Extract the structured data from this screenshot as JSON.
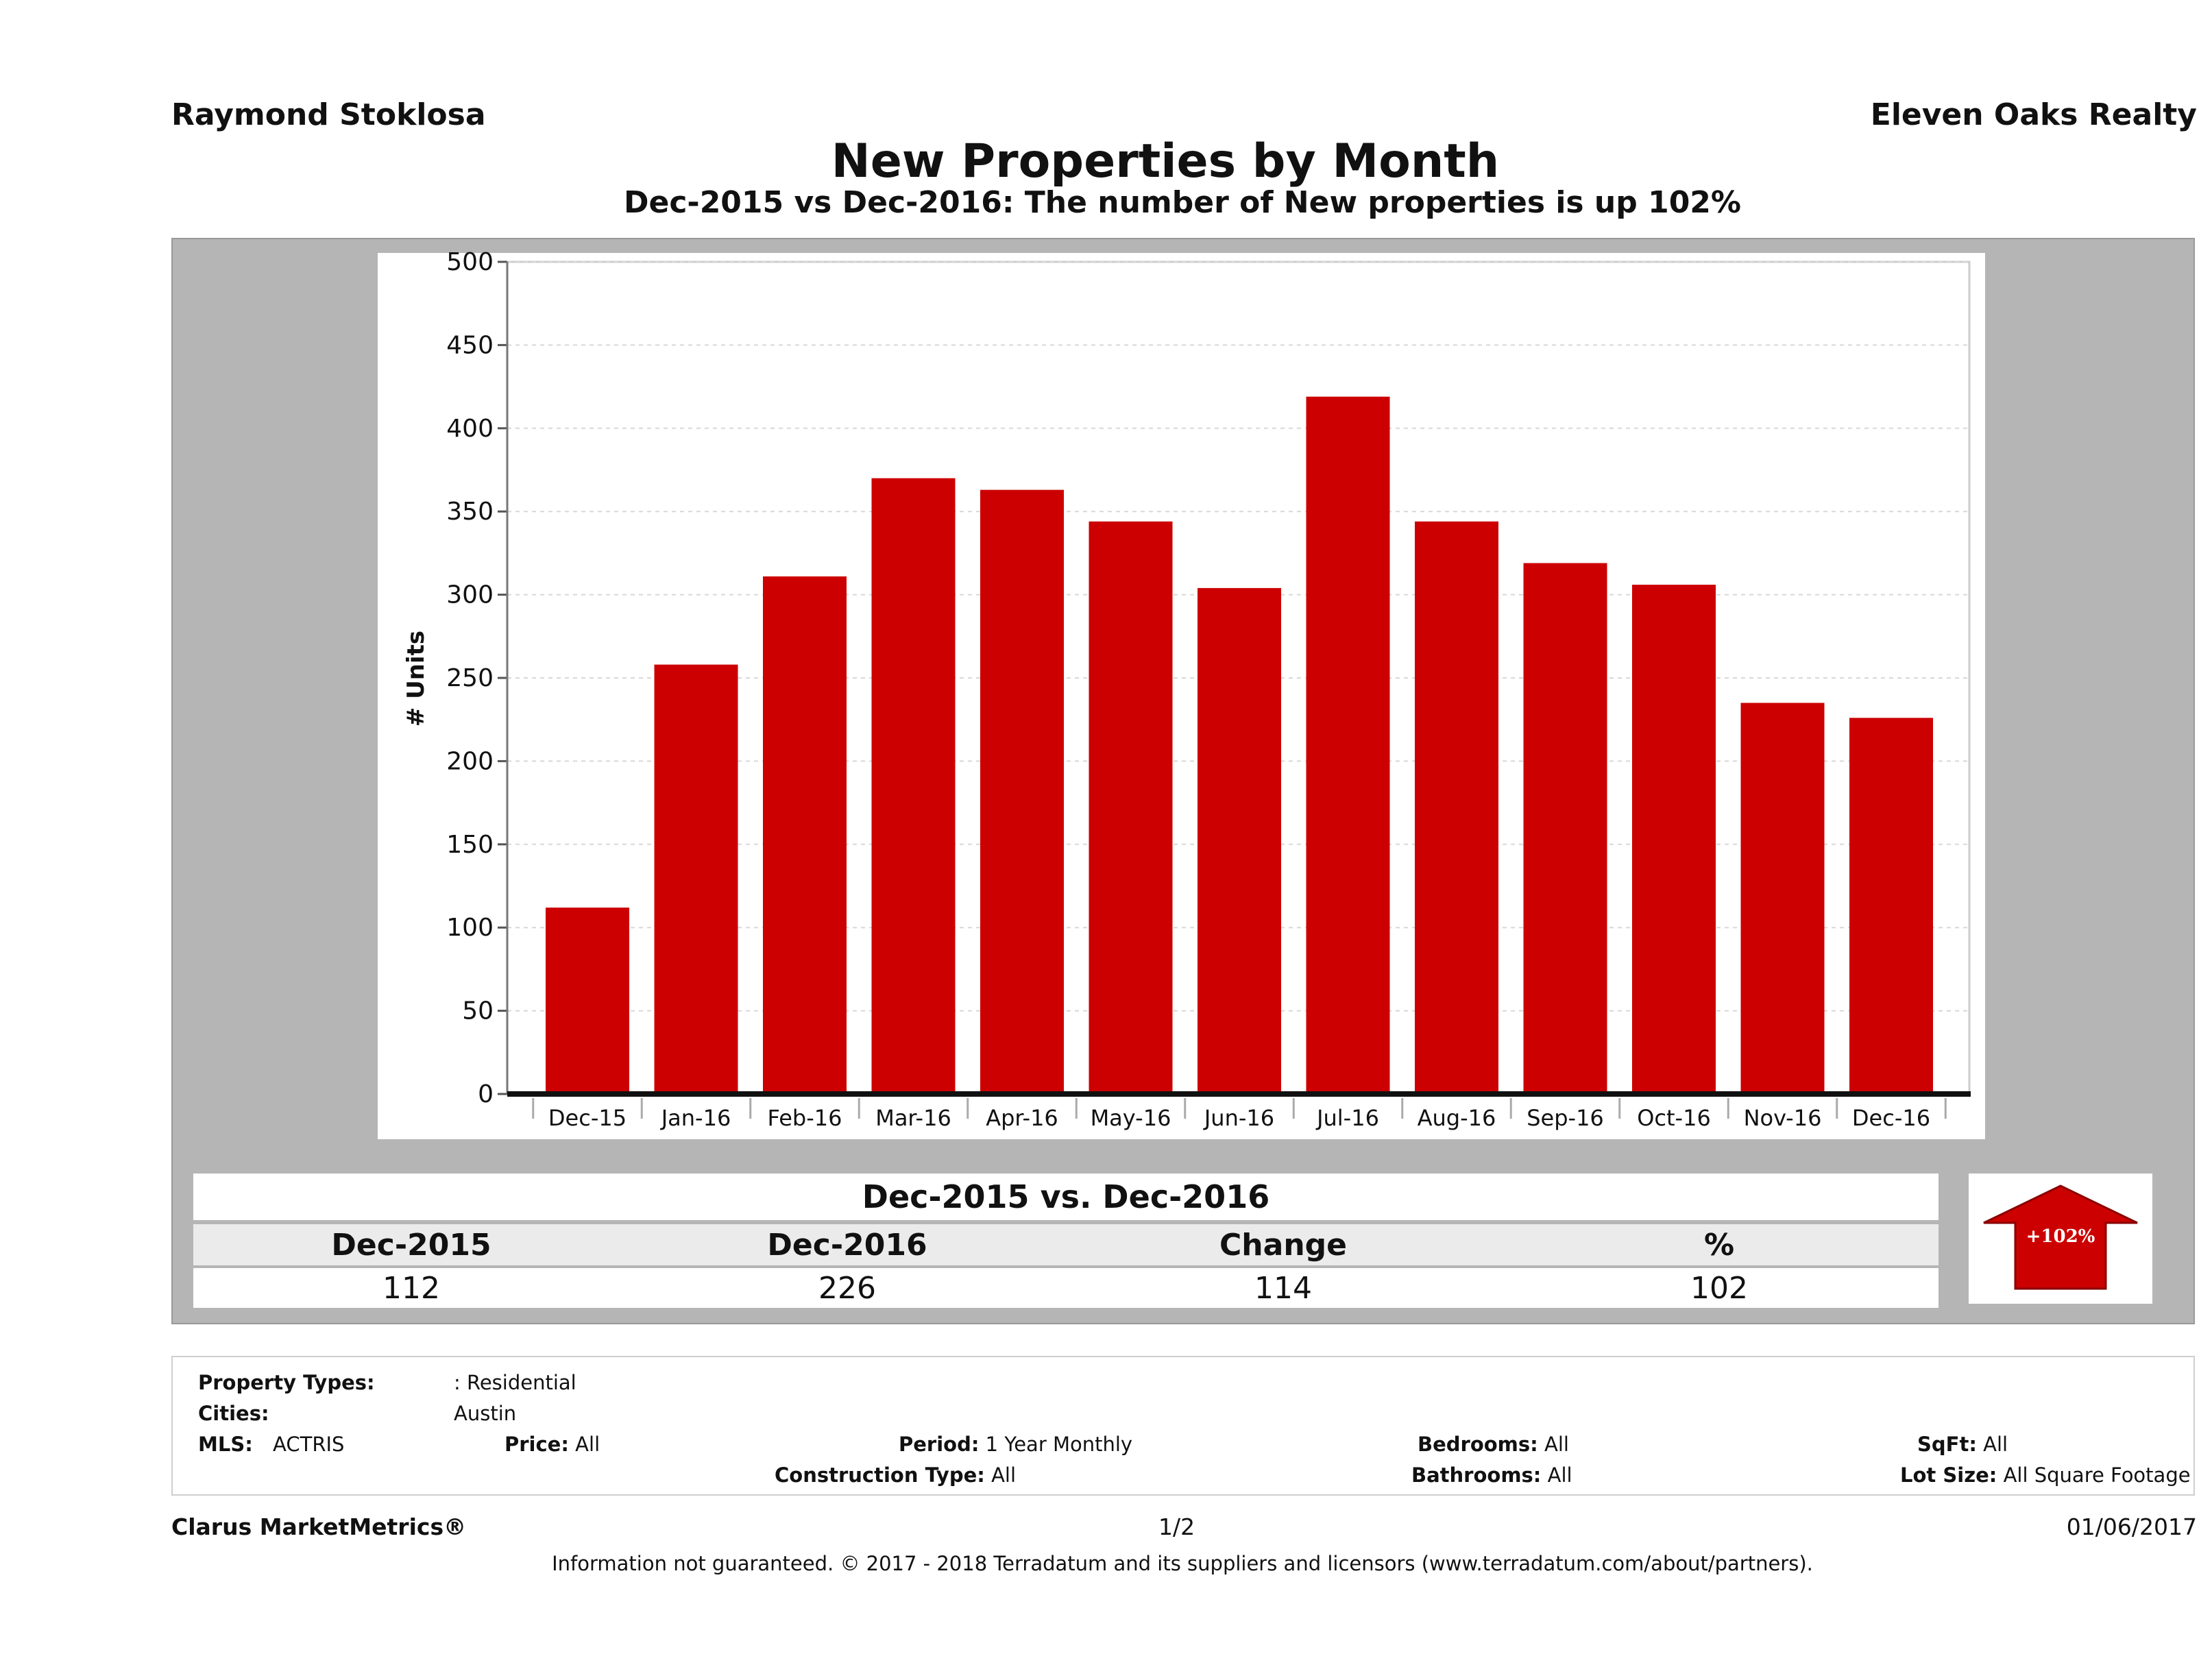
{
  "header": {
    "agent": "Raymond Stoklosa",
    "company": "Eleven Oaks Realty"
  },
  "chart_data": {
    "type": "bar",
    "title": "New Properties by Month",
    "subtitle": "Dec-2015 vs Dec-2016: The number of New   properties is up 102%",
    "ylabel": "# Units",
    "xlabel": "",
    "ylim": [
      0,
      500
    ],
    "yticks": [
      0,
      50,
      100,
      150,
      200,
      250,
      300,
      350,
      400,
      450,
      500
    ],
    "grid": true,
    "categories": [
      "Dec-15",
      "Jan-16",
      "Feb-16",
      "Mar-16",
      "Apr-16",
      "May-16",
      "Jun-16",
      "Jul-16",
      "Aug-16",
      "Sep-16",
      "Oct-16",
      "Nov-16",
      "Dec-16"
    ],
    "values": [
      112,
      258,
      311,
      370,
      363,
      344,
      304,
      419,
      344,
      319,
      306,
      235,
      226
    ],
    "bar_color": "#cc0000"
  },
  "comparison": {
    "title": "Dec-2015 vs. Dec-2016",
    "headers": [
      "Dec-2015",
      "Dec-2016",
      "Change",
      "%"
    ],
    "values": [
      "112",
      "226",
      "114",
      "102"
    ],
    "arrow_label": "+102%",
    "arrow_color": "#cc0000"
  },
  "criteria": {
    "property_types_label": "Property Types:",
    "property_types_value": ": Residential",
    "cities_label": "Cities:",
    "cities_value": "Austin",
    "mls_label": "MLS:",
    "mls_value": "ACTRIS",
    "price_label": "Price:",
    "price_value": "All",
    "period_label": "Period:",
    "period_value": "1 Year Monthly",
    "construction_label": "Construction Type:",
    "construction_value": "All",
    "bedrooms_label": "Bedrooms:",
    "bedrooms_value": "All",
    "bathrooms_label": "Bathrooms:",
    "bathrooms_value": "All",
    "sqft_label": "SqFt:",
    "sqft_value": "All",
    "lotsize_label": "Lot Size:",
    "lotsize_value": "All Square Footage"
  },
  "footer": {
    "brand": "Clarus MarketMetrics®",
    "page": "1/2",
    "date": "01/06/2017",
    "disclaimer": "Information not guaranteed. © 2017 - 2018 Terradatum and its suppliers and licensors (www.terradatum.com/about/partners)."
  }
}
